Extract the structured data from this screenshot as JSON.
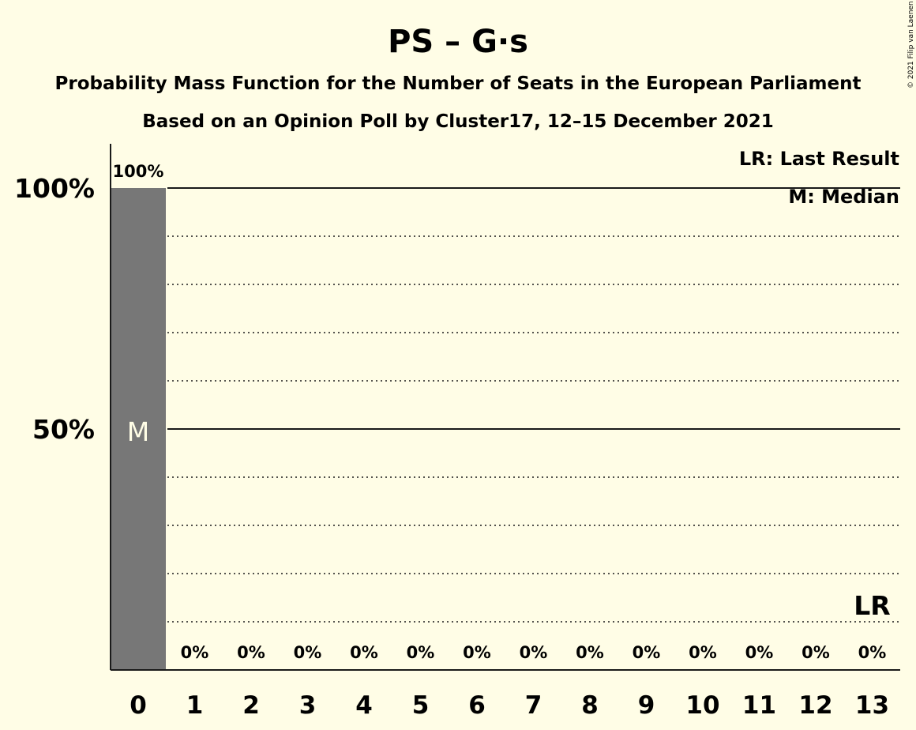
{
  "colors": {
    "background": "#fffde6",
    "bar": "#777777",
    "median_text": "#fffde6",
    "axis": "#1a1a1a"
  },
  "copyright": "© 2021 Filip van Laenen",
  "chart_data": {
    "type": "bar",
    "title": "PS – G·s",
    "subtitle": "Probability Mass Function for the Number of Seats in the European Parliament",
    "subtitle2": "Based on an Opinion Poll by Cluster17, 12–15 December 2021",
    "xlabel": "",
    "ylabel": "",
    "ylim": [
      0,
      1.1
    ],
    "yticks": [
      0.5,
      1.0
    ],
    "ytick_labels": [
      "50%",
      "100%"
    ],
    "gridlines_dotted": [
      0.1,
      0.2,
      0.3,
      0.4,
      0.6,
      0.7,
      0.8,
      0.9
    ],
    "categories": [
      "0",
      "1",
      "2",
      "3",
      "4",
      "5",
      "6",
      "7",
      "8",
      "9",
      "10",
      "11",
      "12",
      "13"
    ],
    "values": [
      1.0,
      0,
      0,
      0,
      0,
      0,
      0,
      0,
      0,
      0,
      0,
      0,
      0,
      0
    ],
    "data_labels": [
      "100%",
      "0%",
      "0%",
      "0%",
      "0%",
      "0%",
      "0%",
      "0%",
      "0%",
      "0%",
      "0%",
      "0%",
      "0%",
      "0%"
    ],
    "median_index": 0,
    "median_marker": "M",
    "last_result_index": 13,
    "last_result_marker": "LR",
    "legend": [
      "LR: Last Result",
      "M: Median"
    ],
    "legend_position": "top-right"
  }
}
